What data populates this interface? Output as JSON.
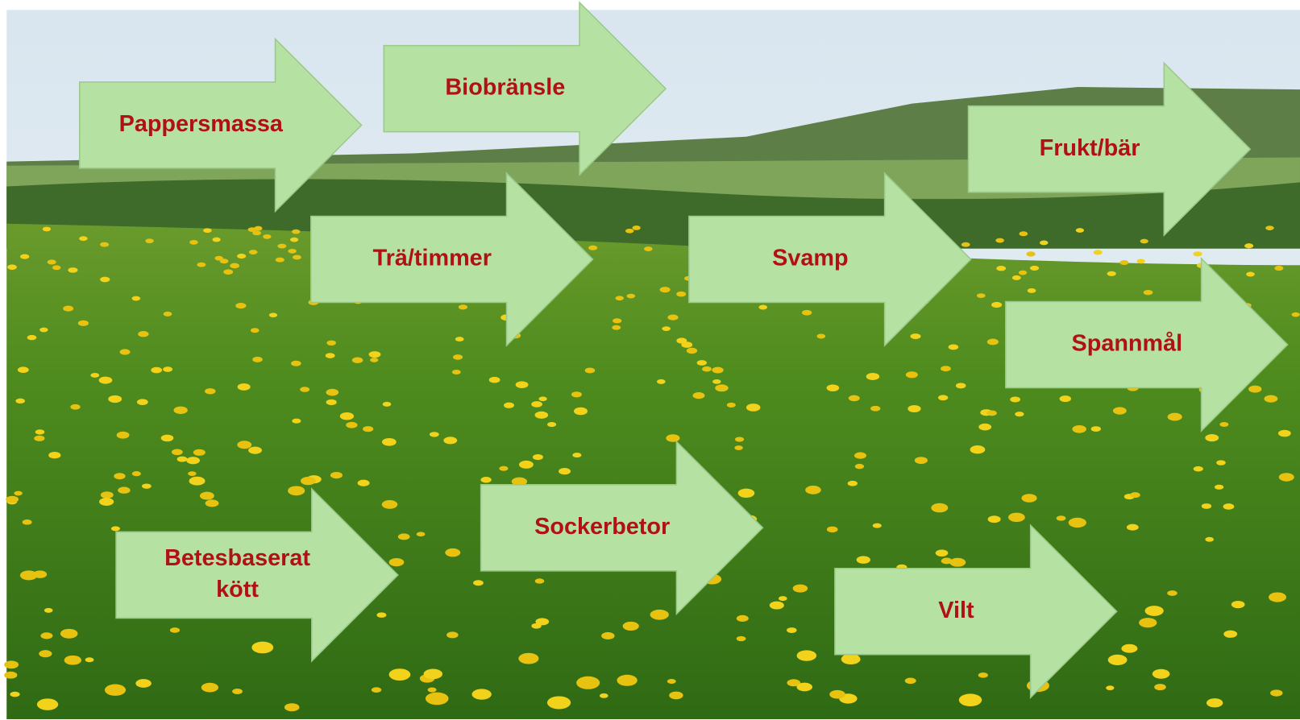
{
  "arrows": [
    {
      "lines": [
        "Pappersmassa"
      ]
    },
    {
      "lines": [
        "Biobränsle"
      ]
    },
    {
      "lines": [
        "Trä/timmer"
      ]
    },
    {
      "lines": [
        "Svamp"
      ]
    },
    {
      "lines": [
        "Frukt/bär"
      ]
    },
    {
      "lines": [
        "Spannmål"
      ]
    },
    {
      "lines": [
        "Sockerbetor"
      ]
    },
    {
      "lines": [
        "Betesbaserat",
        "kött"
      ]
    },
    {
      "lines": [
        "Vilt"
      ]
    }
  ]
}
